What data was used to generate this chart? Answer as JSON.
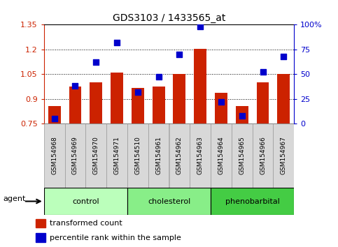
{
  "title": "GDS3103 / 1433565_at",
  "samples": [
    "GSM154968",
    "GSM154969",
    "GSM154970",
    "GSM154971",
    "GSM154510",
    "GSM154961",
    "GSM154962",
    "GSM154963",
    "GSM154964",
    "GSM154965",
    "GSM154966",
    "GSM154967"
  ],
  "transformed_count": [
    0.855,
    0.975,
    1.0,
    1.06,
    0.965,
    0.975,
    1.05,
    1.205,
    0.935,
    0.855,
    1.0,
    1.05
  ],
  "percentile_rank": [
    5,
    38,
    62,
    82,
    32,
    47,
    70,
    98,
    22,
    8,
    52,
    68
  ],
  "groups": [
    {
      "label": "control",
      "start": 0,
      "end": 4,
      "color": "#bbffbb"
    },
    {
      "label": "cholesterol",
      "start": 4,
      "end": 8,
      "color": "#88ee88"
    },
    {
      "label": "phenobarbital",
      "start": 8,
      "end": 12,
      "color": "#44cc44"
    }
  ],
  "ylim_left": [
    0.75,
    1.35
  ],
  "ylim_right": [
    0,
    100
  ],
  "yticks_left": [
    0.75,
    0.9,
    1.05,
    1.2,
    1.35
  ],
  "ytick_labels_left": [
    "0.75",
    "0.9",
    "1.05",
    "1.2",
    "1.35"
  ],
  "yticks_right": [
    0,
    25,
    50,
    75,
    100
  ],
  "ytick_labels_right": [
    "0",
    "25",
    "50",
    "75",
    "100%"
  ],
  "bar_color": "#cc2200",
  "dot_color": "#0000cc",
  "bar_bottom": 0.75,
  "dot_size": 40,
  "grid_yticks": [
    0.9,
    1.05,
    1.2
  ],
  "legend_items": [
    {
      "label": "transformed count",
      "color": "#cc2200"
    },
    {
      "label": "percentile rank within the sample",
      "color": "#0000cc"
    }
  ],
  "agent_label": "agent",
  "left_color": "#cc2200",
  "right_color": "#0000cc",
  "sample_box_color": "#d8d8d8",
  "sample_box_edge": "#999999"
}
